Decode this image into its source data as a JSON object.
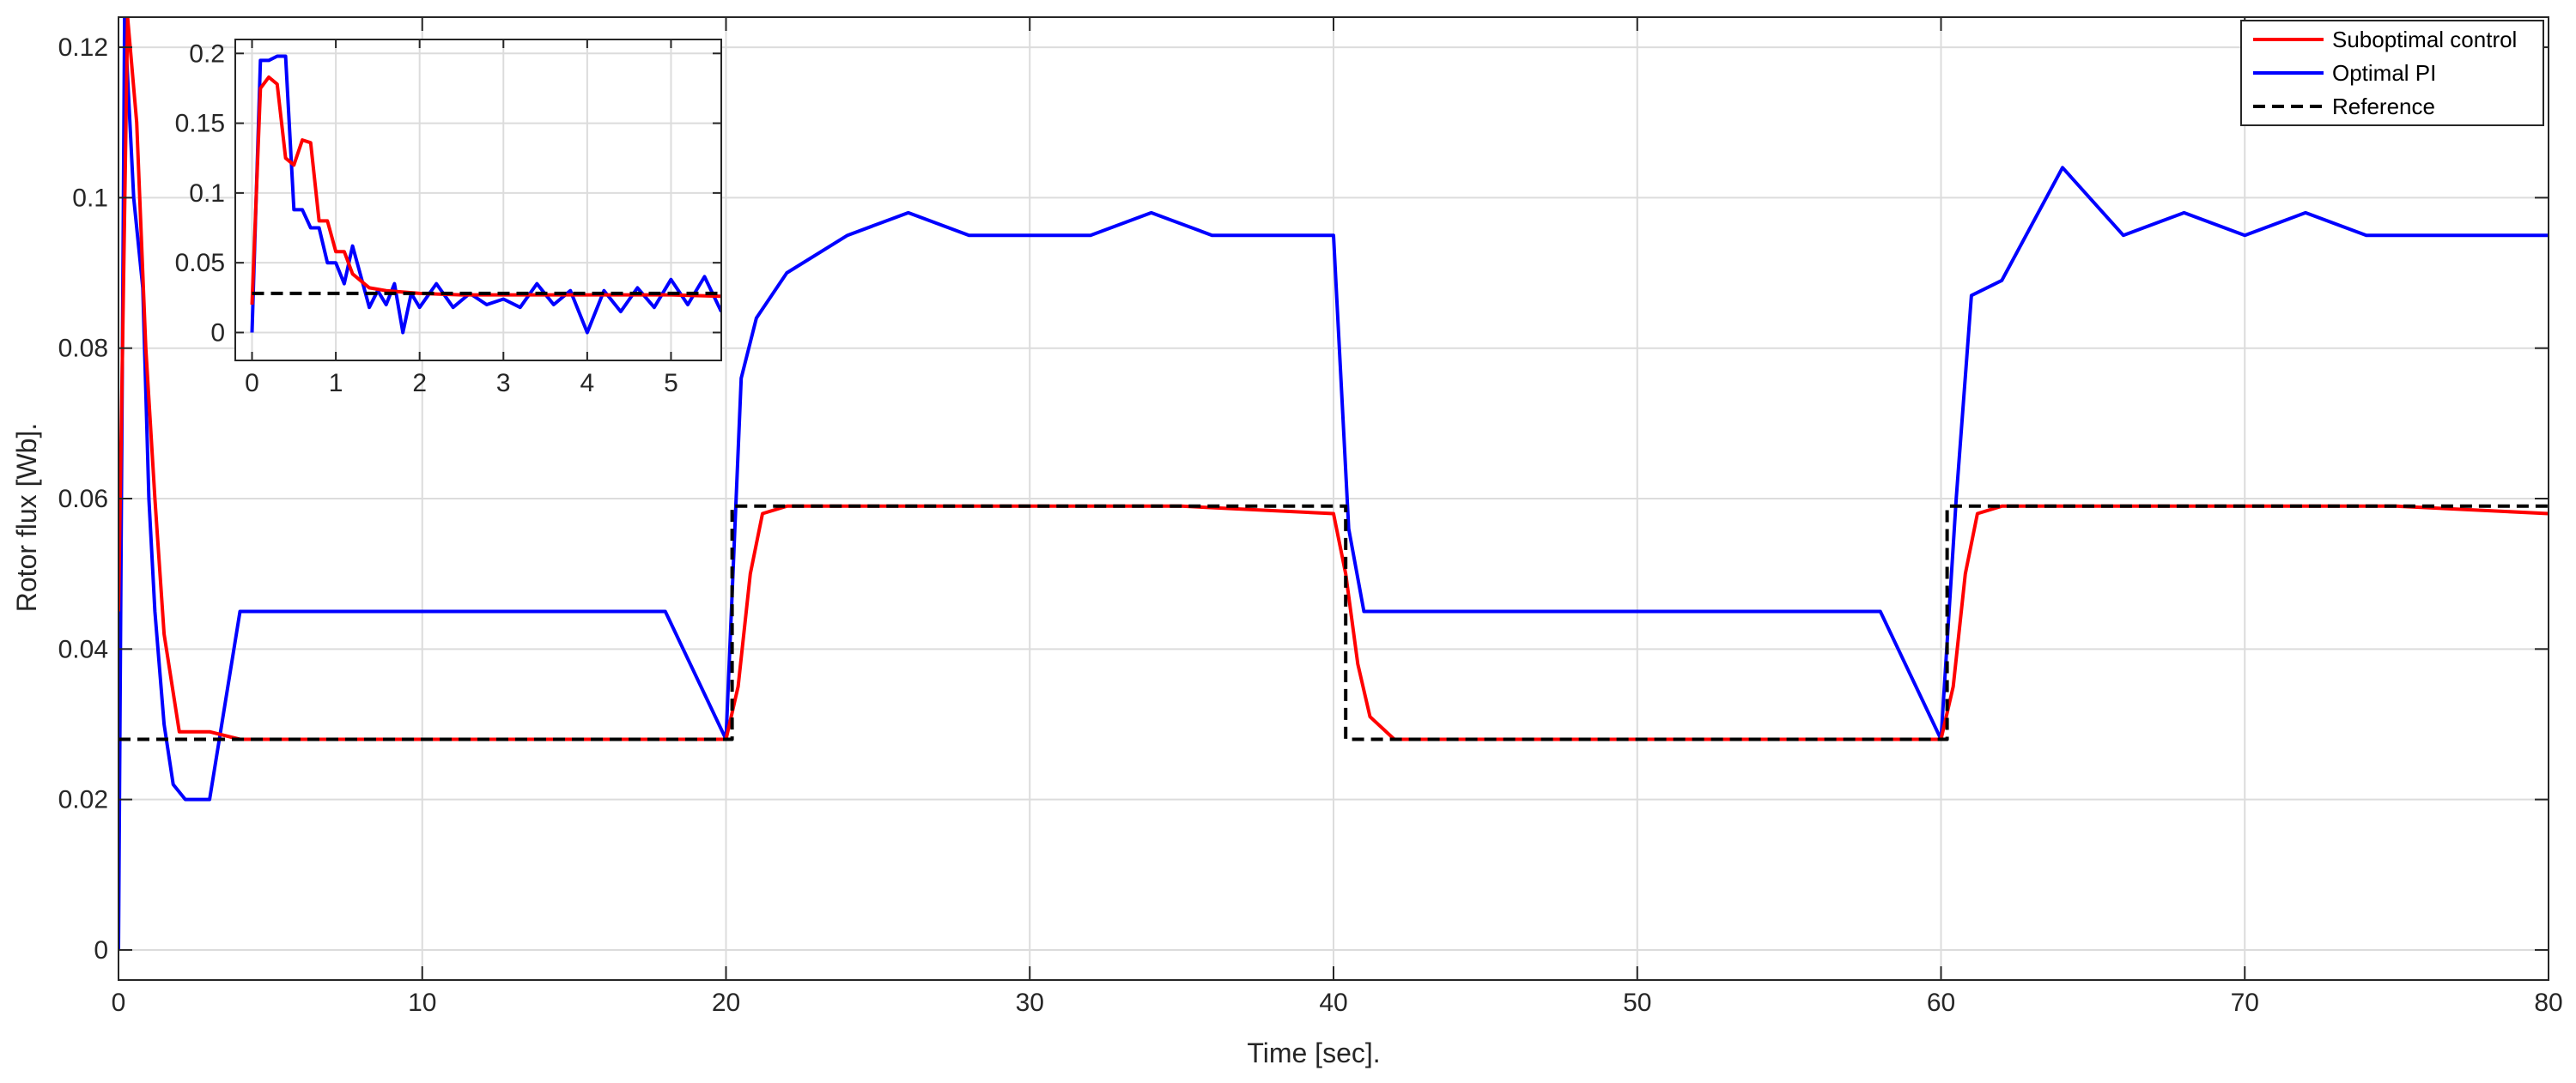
{
  "chart_data": [
    {
      "type": "line",
      "title": "",
      "xlabel": "Time [sec].",
      "ylabel": "Rotor flux [Wb].",
      "xlim": [
        0,
        80
      ],
      "ylim": [
        -0.004,
        0.124
      ],
      "xticks": [
        0,
        10,
        20,
        30,
        40,
        50,
        60,
        70,
        80
      ],
      "xtick_labels": [
        "0",
        "10",
        "20",
        "30",
        "40",
        "50",
        "60",
        "70",
        "80"
      ],
      "yticks": [
        0,
        0.02,
        0.04,
        0.06,
        0.08,
        0.1,
        0.12
      ],
      "ytick_labels": [
        "0",
        "0.02",
        "0.04",
        "0.06",
        "0.08",
        "0.1",
        "0.12"
      ],
      "grid": true,
      "legend_position": "top-right",
      "series": [
        {
          "name": "Suboptimal control",
          "color": "#ff0000",
          "style": "solid",
          "x": [
            0,
            0.3,
            0.6,
            0.9,
            1.2,
            1.5,
            2,
            3,
            4,
            6,
            10,
            15,
            20,
            20.4,
            20.8,
            21.2,
            22,
            25,
            30,
            35,
            40,
            40.4,
            40.8,
            41.2,
            42,
            45,
            50,
            55,
            60,
            60.4,
            60.8,
            61.2,
            62,
            65,
            70,
            75,
            80
          ],
          "y": [
            0.045,
            0.124,
            0.11,
            0.08,
            0.06,
            0.042,
            0.029,
            0.029,
            0.028,
            0.028,
            0.028,
            0.028,
            0.028,
            0.035,
            0.05,
            0.058,
            0.059,
            0.059,
            0.059,
            0.059,
            0.058,
            0.05,
            0.038,
            0.031,
            0.028,
            0.028,
            0.028,
            0.028,
            0.028,
            0.035,
            0.05,
            0.058,
            0.059,
            0.059,
            0.059,
            0.059,
            0.058
          ]
        },
        {
          "name": "Optimal PI",
          "color": "#0000ff",
          "style": "solid",
          "x": [
            0,
            0.2,
            0.5,
            0.8,
            1.0,
            1.2,
            1.5,
            1.8,
            2.2,
            3,
            4,
            5,
            6,
            8,
            10,
            12,
            14,
            16,
            18,
            20,
            20.5,
            21,
            22,
            24,
            26,
            28,
            30,
            32,
            34,
            36,
            38,
            40,
            40.5,
            41,
            42,
            44,
            46,
            48,
            50,
            52,
            54,
            56,
            58,
            60,
            60.5,
            61,
            62,
            64,
            66,
            68,
            70,
            72,
            74,
            76,
            78,
            80
          ],
          "y": [
            0.0,
            0.124,
            0.1,
            0.088,
            0.06,
            0.045,
            0.03,
            0.022,
            0.02,
            0.02,
            0.045,
            0.045,
            0.045,
            0.045,
            0.045,
            0.045,
            0.045,
            0.045,
            0.045,
            0.028,
            0.076,
            0.084,
            0.09,
            0.095,
            0.098,
            0.095,
            0.095,
            0.095,
            0.098,
            0.095,
            0.095,
            0.095,
            0.056,
            0.045,
            0.045,
            0.045,
            0.045,
            0.045,
            0.045,
            0.045,
            0.045,
            0.045,
            0.045,
            0.028,
            0.06,
            0.087,
            0.089,
            0.104,
            0.095,
            0.098,
            0.095,
            0.098,
            0.095,
            0.095,
            0.095,
            0.095
          ]
        },
        {
          "name": "Reference",
          "color": "#000000",
          "style": "dashed",
          "x": [
            0,
            20.2,
            20.2,
            40.4,
            40.4,
            60.2,
            60.2,
            80
          ],
          "y": [
            0.028,
            0.028,
            0.059,
            0.059,
            0.028,
            0.028,
            0.059,
            0.059
          ]
        }
      ]
    },
    {
      "type": "line",
      "title": "",
      "xlabel": "",
      "ylabel": "",
      "xlim": [
        -0.2,
        5.6
      ],
      "ylim": [
        -0.02,
        0.21
      ],
      "xticks": [
        0,
        1,
        2,
        3,
        4,
        5
      ],
      "xtick_labels": [
        "0",
        "1",
        "2",
        "3",
        "4",
        "5"
      ],
      "yticks": [
        0,
        0.05,
        0.1,
        0.15,
        0.2
      ],
      "ytick_labels": [
        "0",
        "0.05",
        "0.1",
        "0.15",
        "0.2"
      ],
      "grid": true,
      "series": [
        {
          "color": "#ff0000",
          "style": "solid",
          "x": [
            0,
            0.1,
            0.2,
            0.3,
            0.4,
            0.5,
            0.6,
            0.7,
            0.8,
            0.9,
            1.0,
            1.1,
            1.2,
            1.4,
            1.6,
            2.0,
            2.5,
            3.0,
            4.0,
            5.0,
            5.6
          ],
          "y": [
            0.02,
            0.175,
            0.183,
            0.178,
            0.125,
            0.12,
            0.138,
            0.136,
            0.08,
            0.08,
            0.058,
            0.058,
            0.042,
            0.032,
            0.03,
            0.028,
            0.027,
            0.027,
            0.027,
            0.027,
            0.026
          ]
        },
        {
          "name": "",
          "color": "#0000ff",
          "style": "solid",
          "x": [
            0,
            0.1,
            0.2,
            0.3,
            0.4,
            0.5,
            0.6,
            0.7,
            0.8,
            0.9,
            1.0,
            1.1,
            1.2,
            1.3,
            1.4,
            1.5,
            1.6,
            1.7,
            1.8,
            1.9,
            2.0,
            2.2,
            2.4,
            2.6,
            2.8,
            3.0,
            3.2,
            3.4,
            3.6,
            3.8,
            4.0,
            4.2,
            4.4,
            4.6,
            4.8,
            5.0,
            5.2,
            5.4,
            5.6
          ],
          "y": [
            0.0,
            0.195,
            0.195,
            0.198,
            0.198,
            0.088,
            0.088,
            0.075,
            0.075,
            0.05,
            0.05,
            0.035,
            0.062,
            0.04,
            0.018,
            0.03,
            0.02,
            0.035,
            0.0,
            0.028,
            0.018,
            0.035,
            0.018,
            0.028,
            0.02,
            0.024,
            0.018,
            0.035,
            0.02,
            0.03,
            0.0,
            0.03,
            0.015,
            0.032,
            0.018,
            0.038,
            0.02,
            0.04,
            0.015
          ]
        },
        {
          "name": "",
          "color": "#000000",
          "style": "dashed",
          "x": [
            0,
            5.6
          ],
          "y": [
            0.028,
            0.028
          ]
        }
      ]
    }
  ]
}
